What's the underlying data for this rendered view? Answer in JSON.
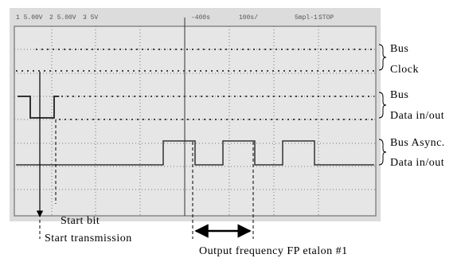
{
  "screen": {
    "header": [
      "1 5.00V",
      "2 5.00V",
      "3 5V",
      "-400s",
      "100s/",
      "5mpl-1",
      "STOP"
    ]
  },
  "labels": {
    "bus_clock": [
      "Bus",
      "Clock"
    ],
    "bus_data": [
      "Bus",
      "Data in/out"
    ],
    "bus_async": [
      "Bus Async.",
      "Data in/out"
    ],
    "start_bit": "Start bit",
    "start_transmission": "Start transmission",
    "output_frequency": "Output frequency FP etalon #1"
  }
}
